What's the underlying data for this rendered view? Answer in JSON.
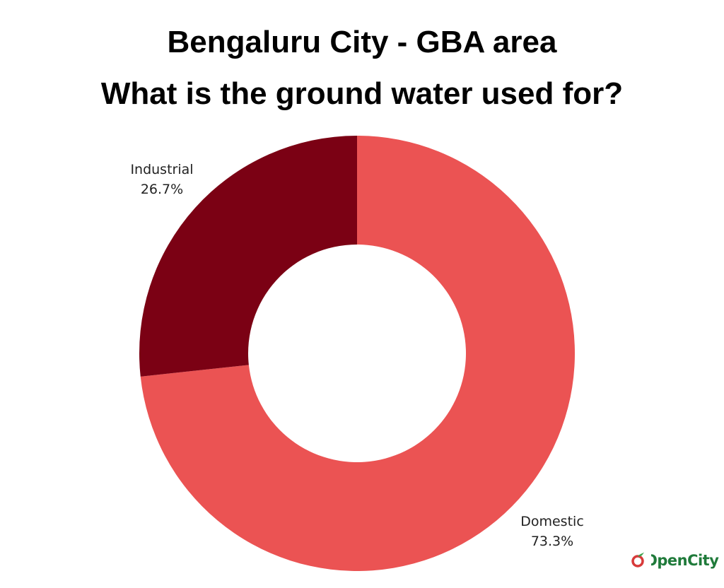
{
  "chart_data": {
    "type": "pie",
    "donut": true,
    "title": "Bengaluru City - GBA area",
    "subtitle": "What is the ground water used for?",
    "slices": [
      {
        "label": "Domestic",
        "value": 73.3,
        "value_label": "73.3%",
        "color": "#EB5353"
      },
      {
        "label": "Industrial",
        "value": 26.7,
        "value_label": "26.7%",
        "color": "#7B0114"
      }
    ],
    "legend": "none"
  },
  "branding": {
    "logo_text": "OpenCity",
    "logo_colors": {
      "accent": "#D83A3A",
      "leaf": "#3FA34D",
      "text": "#1F7A3A"
    }
  }
}
